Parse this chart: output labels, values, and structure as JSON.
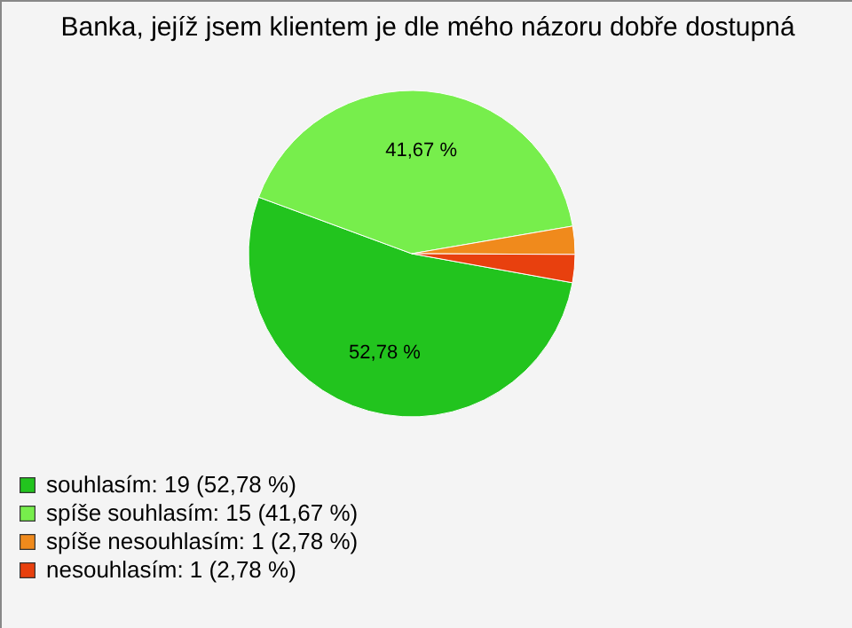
{
  "chart_data": {
    "type": "pie",
    "title": "Banka, jejíž jsem klientem je dle mého názoru dobře dostupná",
    "categories": [
      "souhlasím: 19 (52,78 %)",
      "spíše souhlasím: 15 (41,67 %)",
      "spíše nesouhlasím: 1 (2,78 %)",
      "nesouhlasím: 1 (2,78 %)"
    ],
    "values": [
      52.78,
      41.67,
      2.78,
      2.78
    ],
    "colors": [
      "#22c41e",
      "#77ee4c",
      "#f08a1c",
      "#e8400e"
    ],
    "value_labels": [
      "52,78 %",
      "41,67 %",
      null,
      null
    ],
    "legend": "bottom left"
  }
}
